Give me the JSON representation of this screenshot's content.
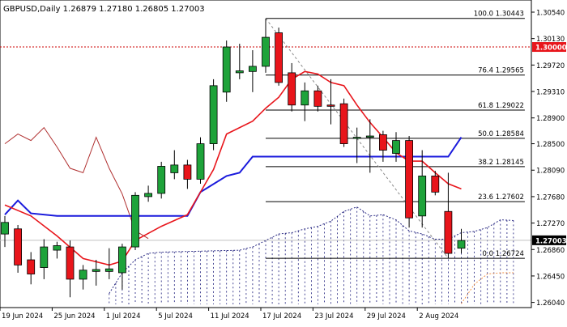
{
  "colors": {
    "bull": "#1ea33a",
    "bear": "#e8151b",
    "kijun": "#1a1adc",
    "tenkan": "#e8151b",
    "chikou": "#b03030",
    "cloud_dots": "#1a1a7a",
    "span_b": "#f28a3a",
    "fib": "#000000",
    "resistance_level": "#cc0000",
    "trend_dash": "#888888"
  },
  "chart_data": {
    "type": "candlestick",
    "title": "GBPUSD,Daily  1.26879 1.27180 1.26805 1.27003",
    "ylim": [
      1.2601,
      1.3054
    ],
    "y_ticks": [
      "1.30540",
      "1.30130",
      "1.29720",
      "1.29310",
      "1.28900",
      "1.28500",
      "1.28090",
      "1.27680",
      "1.27270",
      "1.26860",
      "1.26450",
      "1.26040"
    ],
    "x_date_labels": [
      "19 Jun 2024",
      "25 Jun 2024",
      "1 Jul 2024",
      "5 Jul 2024",
      "11 Jul 2024",
      "17 Jul 2024",
      "23 Jul 2024",
      "29 Jul 2024",
      "2 Aug 2024"
    ],
    "x_date_label_bars": [
      0,
      4,
      8,
      12,
      16,
      20,
      24,
      28,
      32
    ],
    "candles": [
      {
        "o": 1.271,
        "h": 1.2738,
        "l": 1.269,
        "c": 1.2728
      },
      {
        "o": 1.2718,
        "h": 1.2724,
        "l": 1.265,
        "c": 1.2662
      },
      {
        "o": 1.267,
        "h": 1.2682,
        "l": 1.2632,
        "c": 1.2648
      },
      {
        "o": 1.2658,
        "h": 1.2702,
        "l": 1.264,
        "c": 1.269
      },
      {
        "o": 1.2685,
        "h": 1.2698,
        "l": 1.2672,
        "c": 1.2692
      },
      {
        "o": 1.269,
        "h": 1.27,
        "l": 1.2612,
        "c": 1.264
      },
      {
        "o": 1.264,
        "h": 1.2662,
        "l": 1.2624,
        "c": 1.2654
      },
      {
        "o": 1.2652,
        "h": 1.267,
        "l": 1.263,
        "c": 1.2655
      },
      {
        "o": 1.2652,
        "h": 1.2688,
        "l": 1.264,
        "c": 1.2656
      },
      {
        "o": 1.265,
        "h": 1.2695,
        "l": 1.2624,
        "c": 1.269
      },
      {
        "o": 1.269,
        "h": 1.2775,
        "l": 1.2685,
        "c": 1.277
      },
      {
        "o": 1.2768,
        "h": 1.2785,
        "l": 1.276,
        "c": 1.2773
      },
      {
        "o": 1.2773,
        "h": 1.2822,
        "l": 1.2765,
        "c": 1.2815
      },
      {
        "o": 1.2805,
        "h": 1.284,
        "l": 1.2795,
        "c": 1.2817
      },
      {
        "o": 1.2817,
        "h": 1.2825,
        "l": 1.278,
        "c": 1.2795
      },
      {
        "o": 1.2795,
        "h": 1.286,
        "l": 1.2788,
        "c": 1.285
      },
      {
        "o": 1.285,
        "h": 1.295,
        "l": 1.284,
        "c": 1.294
      },
      {
        "o": 1.293,
        "h": 1.301,
        "l": 1.2915,
        "c": 1.3
      },
      {
        "o": 1.296,
        "h": 1.3005,
        "l": 1.295,
        "c": 1.2963
      },
      {
        "o": 1.2962,
        "h": 1.2995,
        "l": 1.293,
        "c": 1.297
      },
      {
        "o": 1.297,
        "h": 1.3044,
        "l": 1.296,
        "c": 1.3015
      },
      {
        "o": 1.3022,
        "h": 1.303,
        "l": 1.294,
        "c": 1.2945
      },
      {
        "o": 1.296,
        "h": 1.2975,
        "l": 1.29,
        "c": 1.291
      },
      {
        "o": 1.291,
        "h": 1.2945,
        "l": 1.2885,
        "c": 1.2932
      },
      {
        "o": 1.2932,
        "h": 1.294,
        "l": 1.29,
        "c": 1.2908
      },
      {
        "o": 1.291,
        "h": 1.295,
        "l": 1.288,
        "c": 1.2908
      },
      {
        "o": 1.2912,
        "h": 1.292,
        "l": 1.2845,
        "c": 1.285
      },
      {
        "o": 1.286,
        "h": 1.2875,
        "l": 1.282,
        "c": 1.286
      },
      {
        "o": 1.286,
        "h": 1.2888,
        "l": 1.2805,
        "c": 1.2862
      },
      {
        "o": 1.2864,
        "h": 1.287,
        "l": 1.2822,
        "c": 1.284
      },
      {
        "o": 1.2835,
        "h": 1.2868,
        "l": 1.2822,
        "c": 1.2855
      },
      {
        "o": 1.2855,
        "h": 1.2862,
        "l": 1.272,
        "c": 1.2735
      },
      {
        "o": 1.2738,
        "h": 1.284,
        "l": 1.272,
        "c": 1.28
      },
      {
        "o": 1.28,
        "h": 1.2808,
        "l": 1.277,
        "c": 1.2775
      },
      {
        "o": 1.2745,
        "h": 1.2805,
        "l": 1.2672,
        "c": 1.268
      },
      {
        "o": 1.2688,
        "h": 1.2718,
        "l": 1.268,
        "c": 1.27
      }
    ],
    "tenkan": [
      {
        "bar": 0,
        "y": 1.2755
      },
      {
        "bar": 2,
        "y": 1.2738
      },
      {
        "bar": 4,
        "y": 1.2707
      },
      {
        "bar": 6,
        "y": 1.2672
      },
      {
        "bar": 8,
        "y": 1.2662
      },
      {
        "bar": 9,
        "y": 1.2668
      },
      {
        "bar": 10,
        "y": 1.27
      },
      {
        "bar": 12,
        "y": 1.2722
      },
      {
        "bar": 14,
        "y": 1.274
      },
      {
        "bar": 16,
        "y": 1.281
      },
      {
        "bar": 17,
        "y": 1.2865
      },
      {
        "bar": 19,
        "y": 1.2885
      },
      {
        "bar": 20,
        "y": 1.2905
      },
      {
        "bar": 21,
        "y": 1.2922
      },
      {
        "bar": 22,
        "y": 1.295
      },
      {
        "bar": 23,
        "y": 1.2962
      },
      {
        "bar": 24,
        "y": 1.2958
      },
      {
        "bar": 25,
        "y": 1.2945
      },
      {
        "bar": 26,
        "y": 1.294
      },
      {
        "bar": 27,
        "y": 1.291
      },
      {
        "bar": 28,
        "y": 1.2883
      },
      {
        "bar": 29,
        "y": 1.286
      },
      {
        "bar": 30,
        "y": 1.2836
      },
      {
        "bar": 31,
        "y": 1.2823
      },
      {
        "bar": 32,
        "y": 1.2823
      },
      {
        "bar": 33,
        "y": 1.2805
      },
      {
        "bar": 34,
        "y": 1.2788
      },
      {
        "bar": 35,
        "y": 1.278
      }
    ],
    "kijun": [
      {
        "bar": 0,
        "y": 1.274
      },
      {
        "bar": 1,
        "y": 1.2762
      },
      {
        "bar": 2,
        "y": 1.2742
      },
      {
        "bar": 4,
        "y": 1.2738
      },
      {
        "bar": 12,
        "y": 1.2738
      },
      {
        "bar": 14,
        "y": 1.2738
      },
      {
        "bar": 15,
        "y": 1.2775
      },
      {
        "bar": 17,
        "y": 1.28
      },
      {
        "bar": 18,
        "y": 1.2805
      },
      {
        "bar": 19,
        "y": 1.283
      },
      {
        "bar": 32,
        "y": 1.283
      },
      {
        "bar": 33,
        "y": 1.283
      },
      {
        "bar": 34,
        "y": 1.283
      },
      {
        "bar": 35,
        "y": 1.286
      }
    ],
    "chikou": [
      {
        "bar": 0,
        "y": 1.285
      },
      {
        "bar": 1,
        "y": 1.2865
      },
      {
        "bar": 2,
        "y": 1.2855
      },
      {
        "bar": 3,
        "y": 1.2875
      },
      {
        "bar": 4,
        "y": 1.2845
      },
      {
        "bar": 5,
        "y": 1.2812
      },
      {
        "bar": 6,
        "y": 1.2805
      },
      {
        "bar": 7,
        "y": 1.286
      },
      {
        "bar": 8,
        "y": 1.2812
      },
      {
        "bar": 9,
        "y": 1.2772
      },
      {
        "bar": 10,
        "y": 1.2715
      },
      {
        "bar": 11,
        "y": 1.2703
      }
    ],
    "cloud_top": [
      {
        "bar": 8,
        "y": 1.2618
      },
      {
        "bar": 9,
        "y": 1.265
      },
      {
        "bar": 10,
        "y": 1.267
      },
      {
        "bar": 11,
        "y": 1.268
      },
      {
        "bar": 12,
        "y": 1.2682
      },
      {
        "bar": 16,
        "y": 1.2684
      },
      {
        "bar": 18,
        "y": 1.2685
      },
      {
        "bar": 19,
        "y": 1.269
      },
      {
        "bar": 20,
        "y": 1.27
      },
      {
        "bar": 21,
        "y": 1.271
      },
      {
        "bar": 22,
        "y": 1.2712
      },
      {
        "bar": 23,
        "y": 1.2718
      },
      {
        "bar": 24,
        "y": 1.2722
      },
      {
        "bar": 25,
        "y": 1.273
      },
      {
        "bar": 26,
        "y": 1.2745
      },
      {
        "bar": 27,
        "y": 1.2752
      },
      {
        "bar": 28,
        "y": 1.2738
      },
      {
        "bar": 29,
        "y": 1.274
      },
      {
        "bar": 30,
        "y": 1.2732
      },
      {
        "bar": 31,
        "y": 1.2715
      },
      {
        "bar": 32,
        "y": 1.271
      },
      {
        "bar": 33,
        "y": 1.2702
      },
      {
        "bar": 34,
        "y": 1.2702
      },
      {
        "bar": 35,
        "y": 1.2712
      },
      {
        "bar": 36,
        "y": 1.2714
      },
      {
        "bar": 37,
        "y": 1.272
      },
      {
        "bar": 38,
        "y": 1.2732
      },
      {
        "bar": 39,
        "y": 1.2731
      }
    ],
    "span_b_future": [
      {
        "bar": 35,
        "y": 1.2602
      },
      {
        "bar": 36,
        "y": 1.2632
      },
      {
        "bar": 37,
        "y": 1.2648
      },
      {
        "bar": 38,
        "y": 1.265
      },
      {
        "bar": 39,
        "y": 1.265
      }
    ],
    "cloud_bottom": 1.2601,
    "cloud_bar_range": [
      8,
      39
    ],
    "fib_retracement": {
      "start_bar": 20,
      "end_bar": 39,
      "trend_from": {
        "bar": 20,
        "y": 1.30443
      },
      "trend_to": {
        "bar": 34,
        "y": 1.26724
      },
      "levels": [
        {
          "label": "100.0 1.30443",
          "price": 1.30443
        },
        {
          "label": "76.4 1.29565",
          "price": 1.29565
        },
        {
          "label": "61.8 1.29022",
          "price": 1.29022
        },
        {
          "label": "50.0 1.28584",
          "price": 1.28584
        },
        {
          "label": "38.2 1.28145",
          "price": 1.28145
        },
        {
          "label": "23.6 1.27602",
          "price": 1.27602
        },
        {
          "label": "0.0 1.26724",
          "price": 1.26724
        }
      ]
    },
    "horizontal_level": {
      "price": 1.3,
      "label": "1.30000"
    },
    "current_price": {
      "price": 1.27003,
      "label": "1.27003"
    }
  }
}
